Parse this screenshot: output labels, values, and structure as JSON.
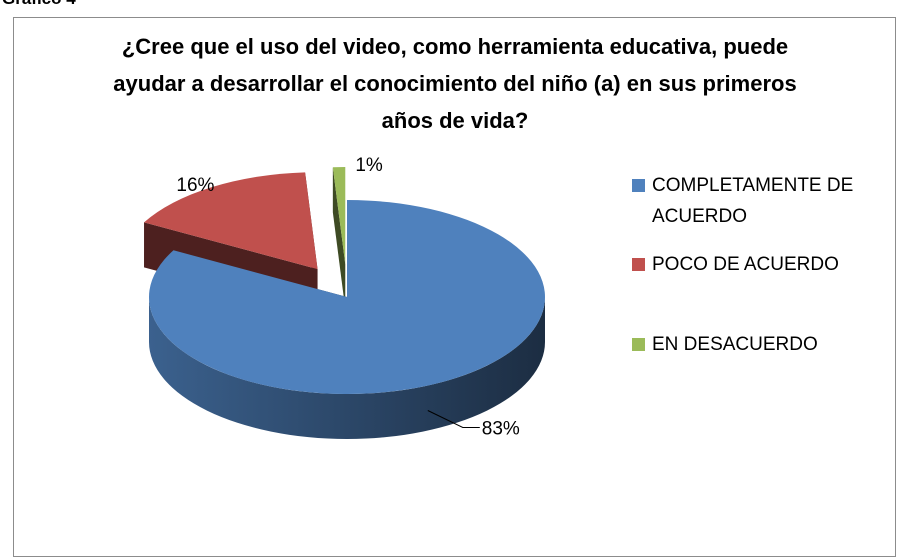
{
  "caption": "Gráfico 4",
  "chart_data": {
    "type": "pie3d",
    "title": "¿Cree que el uso del video, como herramienta educativa, puede ayudar a desarrollar el conocimiento del niño (a) en sus primeros años de vida?",
    "categories": [
      "COMPLETAMENTE DE ACUERDO",
      "POCO DE ACUERDO",
      "EN DESACUERDO"
    ],
    "values": [
      83,
      16,
      1
    ],
    "value_labels": [
      "83%",
      "16%",
      "1%"
    ],
    "colors": [
      "#4f81bd",
      "#c0504d",
      "#9bbb59"
    ],
    "legend": "right"
  }
}
